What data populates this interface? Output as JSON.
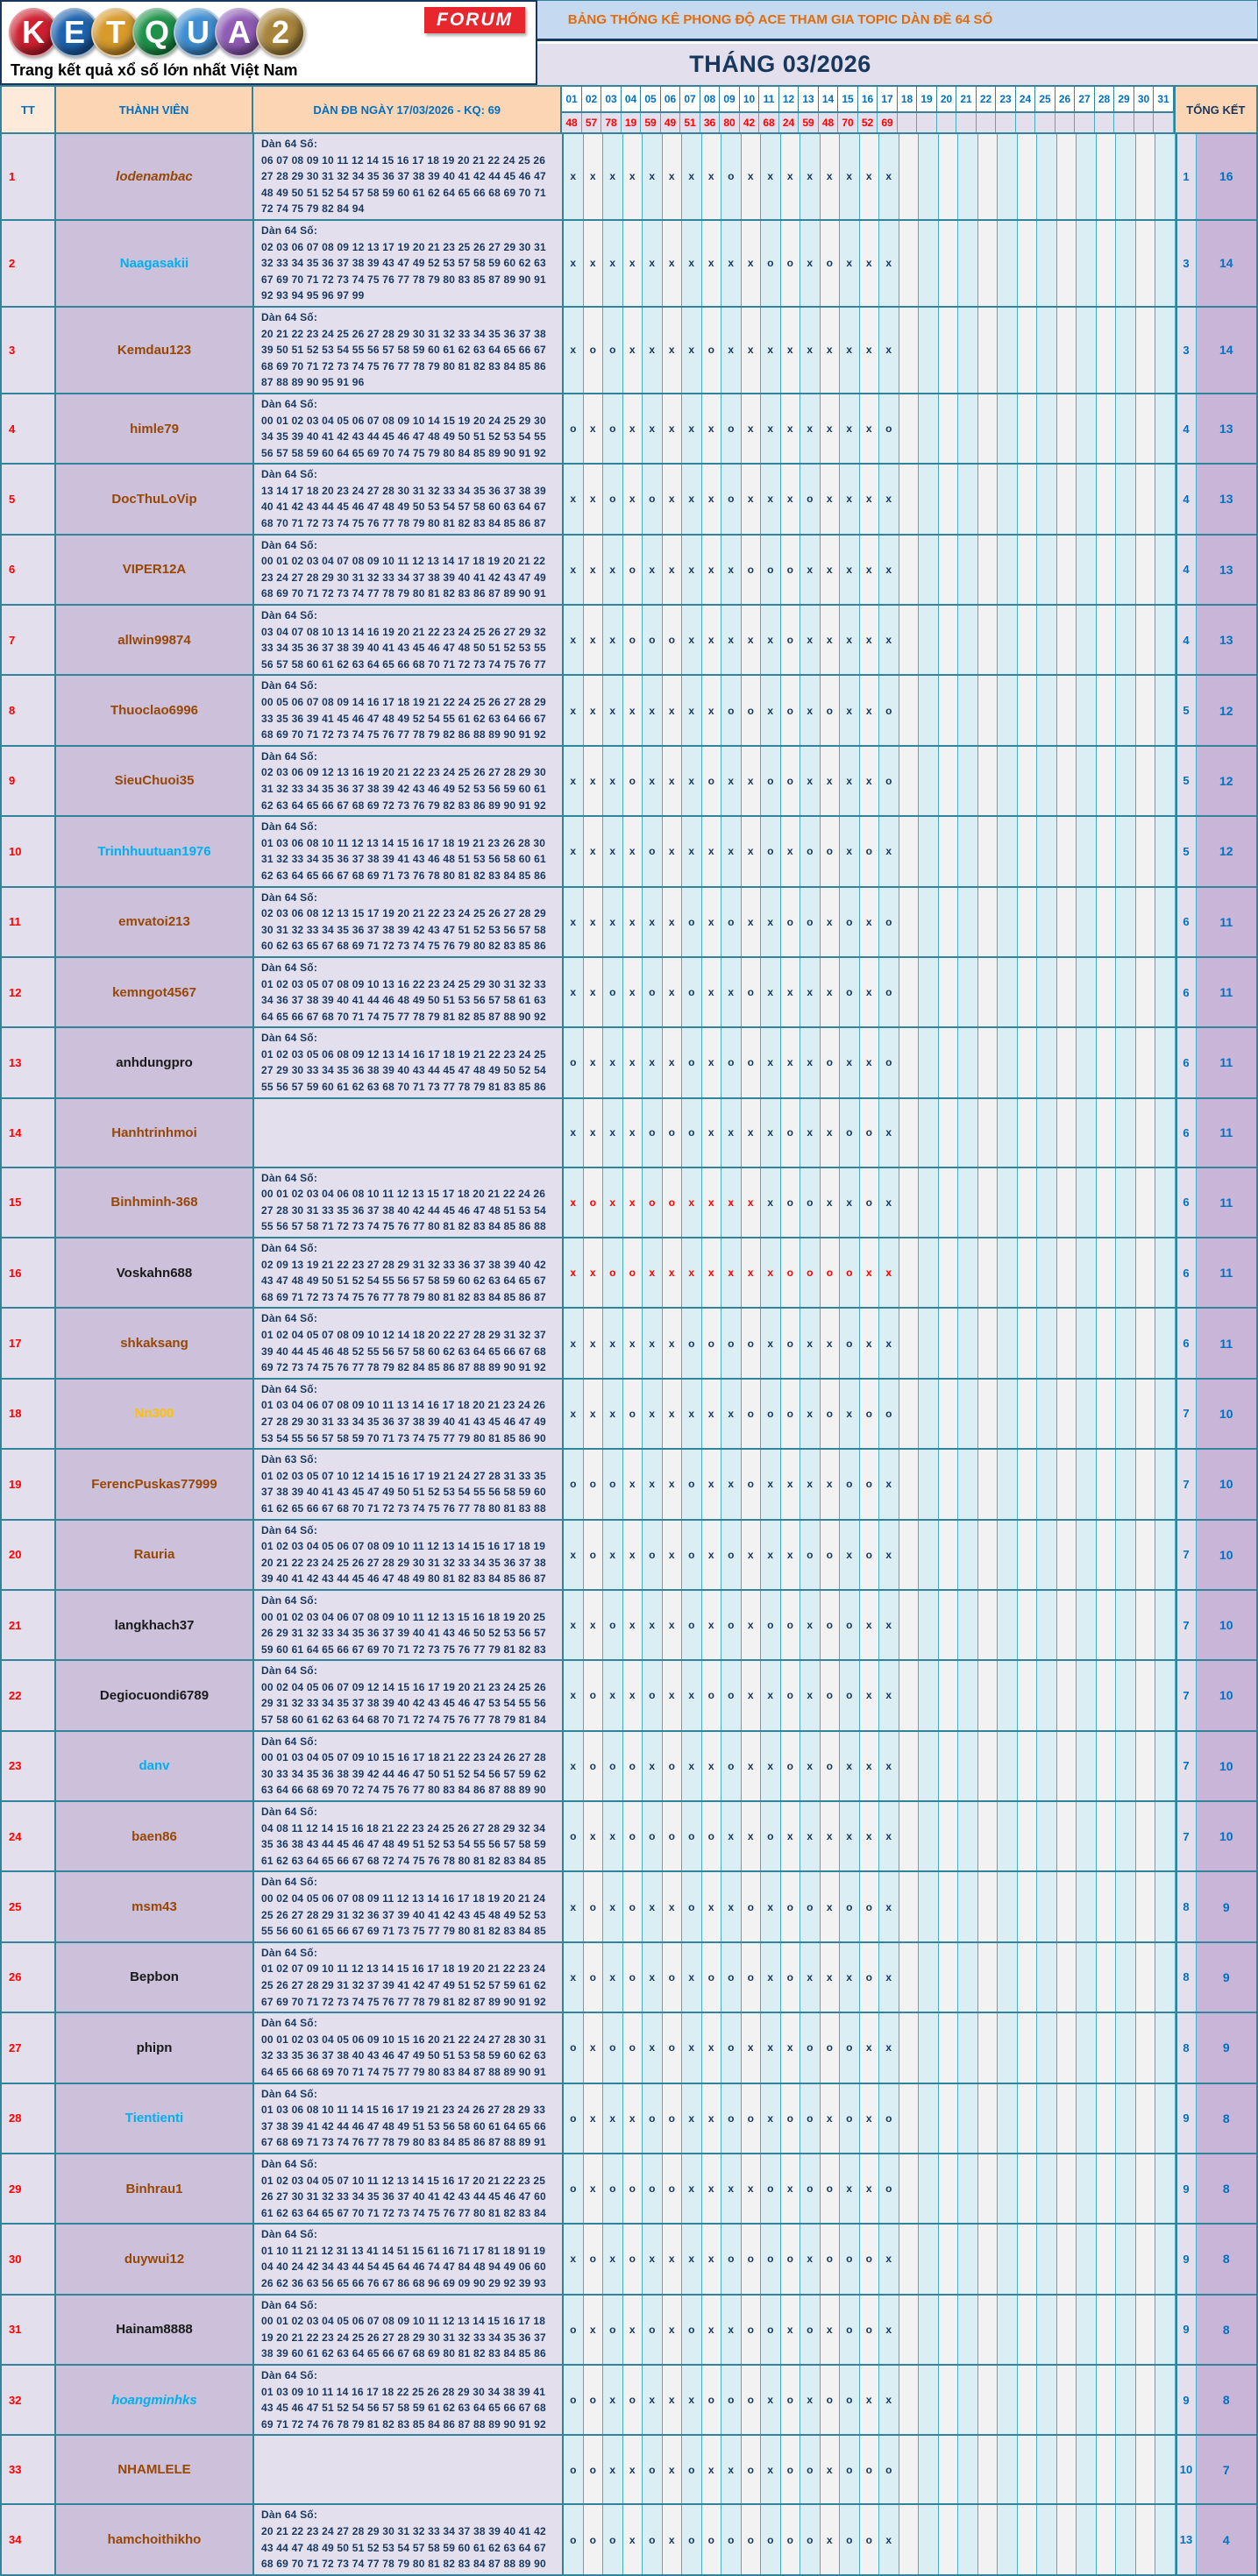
{
  "logo": {
    "letters": [
      {
        "char": "K",
        "color": "#cf2030"
      },
      {
        "char": "E",
        "color": "#1d63ae"
      },
      {
        "char": "T",
        "color": "#d79a2b"
      },
      {
        "char": "Q",
        "color": "#1d9248"
      },
      {
        "char": "U",
        "color": "#3d8ed2"
      },
      {
        "char": "A",
        "color": "#8f5bb5"
      },
      {
        "char": "2",
        "color": "#a8853c"
      }
    ],
    "forum_label": "FORUM",
    "tagline": "Trang kết quả xổ số lớn nhất Việt Nam"
  },
  "banner": {
    "title": "BẢNG THỐNG KÊ PHONG ĐỘ ACE THAM GIA TOPIC DÀN ĐỀ 64 SỐ",
    "month": "THÁNG 03/2026"
  },
  "colors": {
    "accent_teal": "#31849b",
    "banner_bg": "#c5d9f1",
    "banner_text": "#e36c09",
    "navy": "#17375e",
    "blue": "#0070c0",
    "red": "#ff0000",
    "header_bg": "#fcd5b4",
    "lavender": "#e4dfec",
    "purple": "#ccc0da",
    "summary_purple": "#c9b5d8",
    "day_col_cyan": "#daeef3",
    "day_col_gray": "#f2f2f2"
  },
  "table": {
    "headers": {
      "tt": "TT",
      "member": "THÀNH VIÊN",
      "dan": "DÀN ĐB NGÀY 17/03/2026 - KQ: 69",
      "summary": "TỔNG KẾT",
      "days": [
        "01",
        "02",
        "03",
        "04",
        "05",
        "06",
        "07",
        "08",
        "09",
        "10",
        "11",
        "12",
        "13",
        "14",
        "15",
        "16",
        "17",
        "18",
        "19",
        "20",
        "21",
        "22",
        "23",
        "24",
        "25",
        "26",
        "27",
        "28",
        "29",
        "30",
        "31"
      ]
    },
    "kq": [
      "48",
      "57",
      "78",
      "19",
      "59",
      "49",
      "51",
      "36",
      "80",
      "42",
      "68",
      "24",
      "59",
      "48",
      "70",
      "52",
      "69"
    ],
    "rows": [
      {
        "tt": "1",
        "name": "lodenambac",
        "color": "#974706",
        "italic": true,
        "label": "Dàn 64 Số:",
        "numbers": "06 07 08 09 10 11 12 14 15 16 17 18 19 20 21 22 24 25 26 27 28 29 30 31 32 34 35 36 37 38 39 40 41 42 44 45 46 47 48 49 50 51 52 54 57 58 59 60 61 62 64 65 66 68 69 70 71 72 74 75 79 82 84 94",
        "marks": "xxxxxxxxoxxxxxxxx",
        "red_marks": 0,
        "o": "1",
        "x": "16"
      },
      {
        "tt": "2",
        "name": "Naagasakii",
        "color": "#00b0f0",
        "italic": false,
        "label": "Dàn 64 Số:",
        "numbers": "02 03 06 07 08 09 12 13 17 19 20 21 23 25 26 27 29 30 31 32 33 34 35 36 37 38 39 43 47 49 52 53 57 58 59 60 62 63 67 69 70 71 72 73 74 75 76 77 78 79 80 83 85 87 89 90 91 92 93 94 95 96 97 99",
        "marks": "xxxxxxxxxxooxoxxx",
        "red_marks": 0,
        "o": "3",
        "x": "14"
      },
      {
        "tt": "3",
        "name": "Kemdau123",
        "color": "#974706",
        "italic": false,
        "label": "Dàn 64 Số:",
        "numbers": "20 21 22 23 24 25 26 27 28 29 30 31 32 33 34 35 36 37 38 39 50 51 52 53 54 55 56 57 58 59 60 61 62 63 64 65 66 67 68 69 70 71 72 73 74 75 76 77 78 79 80 81 82 83 84 85 86 87 88 89 90 95 91 96",
        "marks": "xooxxxxoxxxxxxxxx",
        "red_marks": 0,
        "o": "3",
        "x": "14"
      },
      {
        "tt": "4",
        "name": "himle79",
        "color": "#974706",
        "italic": false,
        "label": "Dàn 64 Số:",
        "numbers": "00 01 02 03 04 05 06 07 08 09 10 14 15 19 20 24 25 29 30 34 35 39 40 41 42 43 44 45 46 47 48 49 50 51 52 53 54 55 56 57 58 59 60 64 65 69 70 74 75 79 80 84 85 89 90 91 92",
        "marks": "oxoxxxxxoxxxxxxxo",
        "red_marks": 0,
        "o": "4",
        "x": "13"
      },
      {
        "tt": "5",
        "name": "DocThuLoVip",
        "color": "#974706",
        "italic": false,
        "label": "Dàn 64 Số:",
        "numbers": "13 14 17 18 20 23 24 27 28 30 31 32 33 34 35 36 37 38 39 40 41 42 43 44 45 46 47 48 49 50 53 54 57 58 60 63 64 67 68 70 71 72 73 74 75 76 77 78 79 80 81 82 83 84 85 86 87",
        "marks": "xxoxoxxxoxxxoxxxx",
        "red_marks": 0,
        "o": "4",
        "x": "13"
      },
      {
        "tt": "6",
        "name": "VIPER12A",
        "color": "#974706",
        "italic": false,
        "label": "Dàn 64 Số:",
        "numbers": "00 01 02 03 04 07 08 09 10 11 12 13 14 17 18 19 20 21 22 23 24 27 28 29 30 31 32 33 34 37 38 39 40 41 42 43 47 49 68 69 70 71 72 73 74 77 78 79 80 81 82 83 86 87 89 90 91",
        "marks": "xxxoxxxxxoooxxxxx",
        "red_marks": 0,
        "o": "4",
        "x": "13"
      },
      {
        "tt": "7",
        "name": "allwin99874",
        "color": "#974706",
        "italic": false,
        "label": "Dàn 64 Số:",
        "numbers": "03 04 07 08 10 13 14 16 19 20 21 22 23 24 25 26 27 29 32 33 34 35 36 37 38 39 40 41 43 45 46 47 48 50 51 52 53 55 56 57 58 60 61 62 63 64 65 66 68 70 71 72 73 74 75 76 77",
        "marks": "xxxoooxxxxxoxxxxx",
        "red_marks": 0,
        "o": "4",
        "x": "13"
      },
      {
        "tt": "8",
        "name": "Thuoclao6996",
        "color": "#974706",
        "italic": false,
        "label": "Dàn 64 Số:",
        "numbers": "00 05 06 07 08 09 14 16 17 18 19 21 22 24 25 26 27 28 29 33 35 36 39 41 45 46 47 48 49 52 54 55 61 62 63 64 66 67 68 69 70 71 72 73 74 75 76 77 78 79 82 86 88 89 90 91 92",
        "marks": "xxxxxxxxooxoxoxxo",
        "red_marks": 0,
        "o": "5",
        "x": "12"
      },
      {
        "tt": "9",
        "name": "SieuChuoi35",
        "color": "#974706",
        "italic": false,
        "label": "Dàn 64 Số:",
        "numbers": "02 03 06 09 12 13 16 19 20 21 22 23 24 25 26 27 28 29 30 31 32 33 34 35 36 37 38 39 42 43 46 49 52 53 56 59 60 61 62 63 64 65 66 67 68 69 72 73 76 79 82 83 86 89 90 91 92",
        "marks": "xxxoxxxoxxooxxxxo",
        "red_marks": 0,
        "o": "5",
        "x": "12"
      },
      {
        "tt": "10",
        "name": "Trinhhuutuan1976",
        "color": "#00b0f0",
        "italic": false,
        "label": "Dàn 64 Số:",
        "numbers": "01 03 06 08 10 11 12 13 14 15 16 17 18 19 21 23 26 28 30 31 32 33 34 35 36 37 38 39 41 43 46 48 51 53 56 58 60 61 62 63 64 65 66 67 68 69 71 73 76 78 80 81 82 83 84 85 86",
        "marks": "xxxxoxxxxxoxooxox",
        "red_marks": 0,
        "o": "5",
        "x": "12"
      },
      {
        "tt": "11",
        "name": "emvatoi213",
        "color": "#974706",
        "italic": false,
        "label": "Dàn 64 Số:",
        "numbers": "02 03 06 08 12 13 15 17 19 20 21 22 23 24 25 26 27 28 29 30 31 32 33 34 35 36 37 38 39 42 43 47 51 52 53 56 57 58 60 62 63 65 67 68 69 71 72 73 74 75 76 79 80 82 83 85 86",
        "marks": "xxxxxxoxoxxooxoxo",
        "red_marks": 0,
        "o": "6",
        "x": "11"
      },
      {
        "tt": "12",
        "name": "kemngot4567",
        "color": "#974706",
        "italic": false,
        "label": "Dàn 64 Số:",
        "numbers": "01 02 03 05 07 08 09 10 13 16 22 23 24 25 29 30 31 32 33 34 36 37 38 39 40 41 44 46 48 49 50 51 53 56 57 58 61 63 64 65 66 67 68 70 71 74 75 77 78 79 81 82 85 87 88 90 92",
        "marks": "xxoxoxoxxoxxxxoxo",
        "red_marks": 0,
        "o": "6",
        "x": "11"
      },
      {
        "tt": "13",
        "name": "anhdungpro",
        "color": "#1a1a1a",
        "italic": false,
        "label": "Dàn 64 Số:",
        "numbers": "01 02 03 05 06 08 09 12 13 14 16 17 18 19 21 22 23 24 25 27 29 30 33 34 35 36 38 39 40 43 44 45 47 48 49 50 52 54 55 56 57 59 60 61 62 63 68 70 71 73 77 78 79 81 83 85 86",
        "marks": "oxxxxxoxooxxxoxxo",
        "red_marks": 0,
        "o": "6",
        "x": "11"
      },
      {
        "tt": "14",
        "name": "Hanhtrinhmoi",
        "color": "#974706",
        "italic": false,
        "label": null,
        "numbers": null,
        "marks": "xxxxoooxxxxoxxoox",
        "red_marks": 0,
        "o": "6",
        "x": "11"
      },
      {
        "tt": "15",
        "name": "Binhminh-368",
        "color": "#974706",
        "italic": false,
        "label": "Dàn 64 Số:",
        "numbers": "00 01 02 03 04 06 08 10 11 12 13 15 17 18 20 21 22 24 26 27 28 30 31 33 35 36 37 38 40 42 44 45 46 47 48 51 53 54 55 56 57 58 71 72 73 74 75 76 77 80 81 82 83 84 85 86 88",
        "marks": "xoxxooxxxxxooxxox",
        "red_marks": 10,
        "o": "6",
        "x": "11"
      },
      {
        "tt": "16",
        "name": "Voskahn688",
        "color": "#1a1a1a",
        "italic": false,
        "label": "Dàn 64 Số:",
        "numbers": "02 09 13 19 21 22 23 27 28 29 31 32 33 36 37 38 39 40 42 43 47 48 49 50 51 52 54 55 56 57 58 59 60 62 63 64 65 67 68 69 71 72 73 74 75 76 77 78 79 80 81 82 83 84 85 86 87",
        "marks": "xxooxxxxxxxooooxx",
        "red_marks": 17,
        "o": "6",
        "x": "11"
      },
      {
        "tt": "17",
        "name": "shkaksang",
        "color": "#974706",
        "italic": false,
        "label": "Dàn 64 Số:",
        "numbers": "01 02 04 05 07 08 09 10 12 14 18 20 22 27 28 29 31 32 37 39 40 44 45 46 48 52 55 56 57 58 60 62 63 64 65 66 67 68 69 72 73 74 75 76 77 78 79 82 84 85 86 87 88 89 90 91 92",
        "marks": "xxxxxxooooxoxxoxx",
        "red_marks": 0,
        "o": "6",
        "x": "11"
      },
      {
        "tt": "18",
        "name": "Nn300",
        "color": "#ffc000",
        "italic": false,
        "label": "Dàn 64 Số:",
        "numbers": "01 03 04 06 07 08 09 10 11 13 14 16 17 18 20 21 23 24 26 27 28 29 30 31 33 34 35 36 37 38 39 40 41 43 45 46 47 49 53 54 55 56 57 58 59 70 71 73 74 75 77 79 80 81 85 86 90",
        "marks": "xxxoxxxxxoooxoxoo",
        "red_marks": 0,
        "o": "7",
        "x": "10"
      },
      {
        "tt": "19",
        "name": "FerencPuskas77999",
        "color": "#974706",
        "italic": false,
        "label": "Dàn 63 Số:",
        "numbers": "01 02 03 05 07 10 12 14 15 16 17 19 21 24 27 28 31 33 35 37 38 39 40 41 43 45 47 49 50 51 52 53 54 55 56 58 59 60 61 62 65 66 67 68 70 71 72 73 74 75 76 77 78 80 81 83 88",
        "marks": "oooxxxoxxoxxxxoox",
        "red_marks": 0,
        "o": "7",
        "x": "10"
      },
      {
        "tt": "20",
        "name": "Rauria",
        "color": "#974706",
        "italic": false,
        "label": "Dàn 64 Số:",
        "numbers": "01 02 03 04 05 06 07 08 09 10 11 12 13 14 15 16 17 18 19 20 21 22 23 24 25 26 27 28 29 30 31 32 33 34 35 36 37 38 39 40 41 42 43 44 45 46 47 48 49 80 81 82 83 84 85 86 87",
        "marks": "xoxxoxoxoxxxooxox",
        "red_marks": 0,
        "o": "7",
        "x": "10"
      },
      {
        "tt": "21",
        "name": "langkhach37",
        "color": "#1a1a1a",
        "italic": false,
        "label": "Dàn 64 Số:",
        "numbers": "00 01 02 03 04 06 07 08 09 10 11 12 13 15 16 18 19 20 25 26 29 31 32 33 34 35 36 37 39 40 41 43 46 50 52 53 56 57 59 60 61 64 65 66 67 69 70 71 72 73 75 76 77 79 81 82 83",
        "marks": "xxoxxxoxoxooxooxx",
        "red_marks": 0,
        "o": "7",
        "x": "10"
      },
      {
        "tt": "22",
        "name": "Degiocuondi6789",
        "color": "#1a1a1a",
        "italic": false,
        "label": "Dàn 64 Số:",
        "numbers": "00 02 04 05 06 07 09 12 14 15 16 17 19 20 21 23 24 25 26 29 31 32 33 34 35 37 38 39 40 42 43 45 46 47 53 54 55 56 57 58 60 61 62 63 64 68 70 71 72 74 75 76 77 78 79 81 84",
        "marks": "xoxxoxxooxxoxooxx",
        "red_marks": 0,
        "o": "7",
        "x": "10"
      },
      {
        "tt": "23",
        "name": "danv",
        "color": "#00b0f0",
        "italic": false,
        "label": "Dàn 64 Số:",
        "numbers": "00 01 03 04 05 07 09 10 15 16 17 18 21 22 23 24 26 27 28 30 33 34 35 36 38 39 42 44 46 47 50 51 52 54 56 57 59 62 63 64 66 68 69 70 72 74 75 76 77 80 83 84 86 87 88 89 90",
        "marks": "xoooxoxxoxxoxoxxx",
        "red_marks": 0,
        "o": "7",
        "x": "10"
      },
      {
        "tt": "24",
        "name": "baen86",
        "color": "#974706",
        "italic": false,
        "label": "Dàn 64 Số:",
        "numbers": "04 08 11 12 14 15 16 18 21 22 23 24 25 26 27 28 29 32 34 35 36 38 43 44 45 46 47 48 49 51 52 53 54 55 56 57 58 59 61 62 63 64 65 66 67 68 72 74 75 76 78 80 81 82 83 84 85",
        "marks": "oxxoooooxxoxxxxxx",
        "red_marks": 0,
        "o": "7",
        "x": "10"
      },
      {
        "tt": "25",
        "name": "msm43",
        "color": "#974706",
        "italic": false,
        "label": "Dàn 64 Số:",
        "numbers": "00 02 04 05 06 07 08 09 11 12 13 14 16 17 18 19 20 21 24 25 26 27 28 29 31 32 36 37 39 40 41 42 43 45 48 49 52 53 55 56 60 61 65 66 67 69 71 73 75 77 79 80 81 82 83 84 85",
        "marks": "xoxoxxoxxoxooxoox",
        "red_marks": 0,
        "o": "8",
        "x": "9"
      },
      {
        "tt": "26",
        "name": "Bepbon",
        "color": "#1a1a1a",
        "italic": false,
        "label": "Dàn 64 Số:",
        "numbers": "01 02 07 09 10 11 12 13 14 15 16 17 18 19 20 21 22 23 24 25 26 27 28 29 31 32 37 39 41 42 47 49 51 52 57 59 61 62 67 69 70 71 72 73 74 75 76 77 78 79 81 82 87 89 90 91 92",
        "marks": "xoxoxoxoooxoxxxox",
        "red_marks": 0,
        "o": "8",
        "x": "9"
      },
      {
        "tt": "27",
        "name": "phipn",
        "color": "#1a1a1a",
        "italic": false,
        "label": "Dàn 64 Số:",
        "numbers": "00 01 02 03 04 05 06 09 10 15 16 20 21 22 24 27 28 30 31 32 33 35 36 37 38 40 43 46 47 49 50 51 53 58 59 60 62 63 64 65 66 68 69 70 71 74 75 77 79 80 83 84 87 88 89 90 91",
        "marks": "oxooxoxxoxxxoooxx",
        "red_marks": 0,
        "o": "8",
        "x": "9"
      },
      {
        "tt": "28",
        "name": "Tientienti",
        "color": "#00b0f0",
        "italic": false,
        "label": "Dàn 64 Số:",
        "numbers": "01 03 06 08 10 11 14 15 16 17 19 21 23 24 26 27 28 29 33 37 38 39 41 42 44 46 47 48 49 51 53 56 58 60 61 64 65 66 67 68 69 71 73 74 76 77 78 79 80 83 84 85 86 87 88 89 91",
        "marks": "oxxxooxxooxooxoxo",
        "red_marks": 0,
        "o": "9",
        "x": "8"
      },
      {
        "tt": "29",
        "name": "Binhrau1",
        "color": "#974706",
        "italic": false,
        "label": "Dàn 64 Số:",
        "numbers": "01 02 03 04 05 07 10 11 12 13 14 15 16 17 20 21 22 23 25 26 27 30 31 32 33 34 35 36 37 40 41 42 43 44 45 46 47 60 61 62 63 64 65 67 70 71 72 73 74 75 76 77 80 81 82 83 84",
        "marks": "oxooooxxxxoxooxxo",
        "red_marks": 0,
        "o": "9",
        "x": "8"
      },
      {
        "tt": "30",
        "name": "duywui12",
        "color": "#974706",
        "italic": false,
        "label": "Dàn 64 Số:",
        "numbers": "01 10 11 21 12 31 13 41 14 51 15 61 16 71 17 81 18 91 19 04 40 24 42 34 43 44 54 45 64 46 74 47 84 48 94 49 06 60 26 62 36 63 56 65 66 76 67 86 68 96 69 09 90 29 92 39 93",
        "marks": "xoxoxxxxooooxooox",
        "red_marks": 0,
        "o": "9",
        "x": "8"
      },
      {
        "tt": "31",
        "name": "Hainam8888",
        "color": "#1a1a1a",
        "italic": false,
        "label": "Dàn 64 Số:",
        "numbers": "00 01 02 03 04 05 06 07 08 09 10 11 12 13 14 15 16 17 18 19 20 21 22 23 24 25 26 27 28 29 30 31 32 33 34 35 36 37 38 39 60 61 62 63 64 65 66 67 68 69 80 81 82 83 84 85 86",
        "marks": "oxoxoxoxxooxoxoox",
        "red_marks": 0,
        "o": "9",
        "x": "8"
      },
      {
        "tt": "32",
        "name": "hoangminhks",
        "color": "#00b0f0",
        "italic": true,
        "label": "Dàn 64 Số:",
        "numbers": "01 03 09 10 11 14 16 17 18 22 25 26 28 29 30 34 38 39 41 43 45 46 47 51 52 54 56 57 58 59 61 62 63 64 65 66 67 68 69 71 72 74 76 78 79 81 82 83 85 84 86 87 88 89 90 91 92",
        "marks": "ooxoxxxoooxoxooxx",
        "red_marks": 0,
        "o": "9",
        "x": "8"
      },
      {
        "tt": "33",
        "name": "NHAMLELE",
        "color": "#974706",
        "italic": false,
        "label": null,
        "numbers": null,
        "marks": "ooxxoxoxxoxooxooo",
        "red_marks": 0,
        "o": "10",
        "x": "7"
      },
      {
        "tt": "34",
        "name": "hamchoithikho",
        "color": "#974706",
        "italic": false,
        "label": "Dàn 64 Số:",
        "numbers": "20 21 22 23 24 27 28 29 30 31 32 33 34 37 38 39 40 41 42 43 44 47 48 49 50 51 52 53 54 57 58 59 60 61 62 63 64 67 68 69 70 71 72 73 74 77 78 79 80 81 82 83 84 87 88 89 90",
        "marks": "oooxoxoooooooxoox",
        "red_marks": 0,
        "o": "13",
        "x": "4"
      }
    ]
  }
}
